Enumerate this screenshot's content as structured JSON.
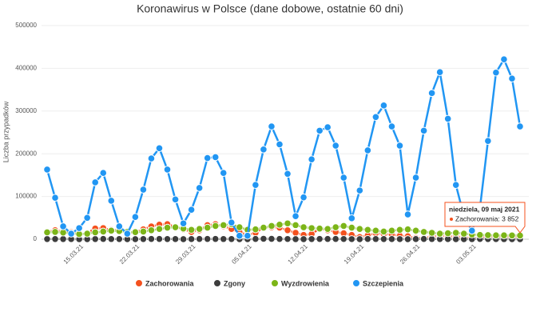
{
  "chart_data": {
    "type": "line",
    "title": "Koronawirus w Polsce (dane dobowe, ostatnie 60 dni)",
    "y_label": "Liczba przypadków",
    "categories": [
      null,
      null,
      null,
      null,
      "15.03.21",
      null,
      null,
      null,
      null,
      null,
      null,
      "22.03.21",
      null,
      null,
      null,
      null,
      null,
      null,
      "29.03.21",
      null,
      null,
      null,
      null,
      null,
      null,
      "05.04.21",
      null,
      null,
      null,
      null,
      null,
      null,
      "12.04.21",
      null,
      null,
      null,
      null,
      null,
      null,
      "19.04.21",
      null,
      null,
      null,
      null,
      null,
      null,
      "26.04.21",
      null,
      null,
      null,
      null,
      null,
      null,
      "03.05.21",
      null,
      null,
      null,
      null,
      null,
      null
    ],
    "ylim": [
      0,
      500000
    ],
    "yticks": [
      0,
      100000,
      200000,
      300000,
      400000,
      500000
    ],
    "grid": true,
    "legend": "bottom",
    "series": [
      {
        "name": "Zachorowania",
        "color": "#f4511e",
        "values": [
          17260,
          21045,
          18789,
          16229,
          10896,
          14396,
          25052,
          25998,
          21849,
          21130,
          15961,
          16000,
          23000,
          29978,
          34151,
          35143,
          29253,
          22947,
          16965,
          20870,
          32874,
          35251,
          30546,
          24000,
          16740,
          9902,
          14800,
          27887,
          28000,
          27000,
          21000,
          15000,
          10000,
          12000,
          25000,
          21000,
          17000,
          14000,
          10000,
          5000,
          9000,
          14000,
          12000,
          11000,
          8000,
          7000,
          3000,
          3000,
          6000,
          8000,
          7000,
          6000,
          5000,
          2000,
          3000,
          6000,
          6000,
          5000,
          4000,
          3852
        ]
      },
      {
        "name": "Zgony",
        "color": "#3d3d3d",
        "values": [
          398,
          386,
          428,
          267,
          40,
          192,
          411,
          541,
          449,
          406,
          39,
          36,
          424,
          575,
          520,
          428,
          280,
          50,
          300,
          653,
          621,
          520,
          464,
          400,
          15,
          100,
          500,
          954,
          803,
          621,
          475,
          150,
          90,
          400,
          606,
          573,
          557,
          469,
          239,
          140,
          539,
          457,
          421,
          320,
          250,
          40,
          300,
          500,
          460,
          380,
          270,
          90,
          39,
          230,
          500,
          370,
          300,
          220,
          71,
          40
        ]
      },
      {
        "name": "Wyzdrowienia",
        "color": "#7cb518",
        "values": [
          16000,
          17000,
          15500,
          14000,
          12000,
          13000,
          16000,
          18000,
          20000,
          19000,
          17000,
          16500,
          18000,
          21000,
          24000,
          27000,
          28000,
          25000,
          22000,
          24000,
          27000,
          31000,
          33000,
          35000,
          28000,
          22000,
          23000,
          27000,
          31000,
          34000,
          37000,
          33000,
          28000,
          26000,
          25000,
          24000,
          28000,
          31000,
          27000,
          24000,
          22000,
          20000,
          18000,
          20000,
          22000,
          23000,
          20000,
          17000,
          15000,
          13000,
          14000,
          15000,
          13000,
          11000,
          10000,
          9500,
          9000,
          9000,
          8800,
          8500
        ]
      },
      {
        "name": "Szczepienia",
        "color": "#2196f3",
        "values": [
          163000,
          97000,
          30000,
          13000,
          26000,
          50000,
          133000,
          155000,
          90000,
          30000,
          13000,
          52000,
          116000,
          189000,
          213000,
          163000,
          93000,
          37000,
          69000,
          120000,
          190000,
          192000,
          155000,
          39000,
          8000,
          8000,
          127000,
          210000,
          264000,
          222000,
          153000,
          54000,
          98000,
          187000,
          254000,
          262000,
          219000,
          144000,
          49000,
          114000,
          208000,
          286000,
          313000,
          264000,
          219000,
          58000,
          144000,
          254000,
          342000,
          391000,
          282000,
          127000,
          54000,
          20000,
          73000,
          230000,
          390000,
          421000,
          376000,
          264000
        ]
      }
    ],
    "tooltip": {
      "title": "niedziela, 09 maj 2021",
      "text": "Zachorowania: 3 852"
    }
  }
}
